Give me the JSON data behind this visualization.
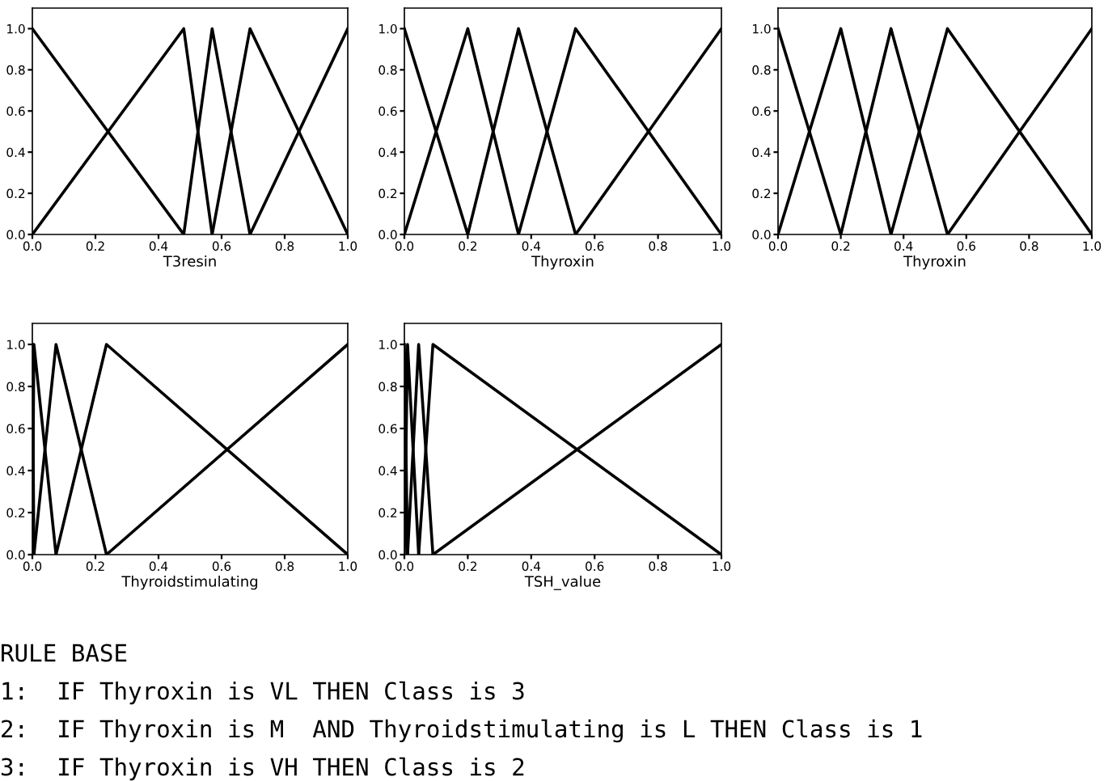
{
  "chart_data": [
    {
      "type": "line",
      "xlabel": "T3resin",
      "xlim": [
        0,
        1
      ],
      "ylim": [
        0,
        1.1
      ],
      "xticks": [
        {
          "value": 0,
          "label": "0.0"
        },
        {
          "value": 0.2,
          "label": "0.2"
        },
        {
          "value": 0.4,
          "label": "0.4"
        },
        {
          "value": 0.6,
          "label": "0.6"
        },
        {
          "value": 0.8,
          "label": "0.8"
        },
        {
          "value": 1,
          "label": "1.0"
        }
      ],
      "yticks": [
        {
          "value": 0,
          "label": "0.0"
        },
        {
          "value": 0.2,
          "label": "0.2"
        },
        {
          "value": 0.4,
          "label": "0.4"
        },
        {
          "value": 0.6,
          "label": "0.6"
        },
        {
          "value": 0.8,
          "label": "0.8"
        },
        {
          "value": 1,
          "label": "1.0"
        }
      ],
      "series": [
        {
          "color": "#000000",
          "x": [
            0,
            0.48
          ],
          "values": [
            1,
            0
          ]
        },
        {
          "color": "#000000",
          "x": [
            0,
            0.48,
            0.57
          ],
          "values": [
            0,
            1,
            0
          ]
        },
        {
          "color": "#000000",
          "x": [
            0.48,
            0.57,
            0.69
          ],
          "values": [
            0,
            1,
            0
          ]
        },
        {
          "color": "#000000",
          "x": [
            0.57,
            0.69,
            1
          ],
          "values": [
            0,
            1,
            0
          ]
        },
        {
          "color": "#000000",
          "x": [
            0.69,
            1
          ],
          "values": [
            0,
            1
          ]
        }
      ]
    },
    {
      "type": "line",
      "xlabel": "Thyroxin",
      "xlim": [
        0,
        1
      ],
      "ylim": [
        0,
        1.1
      ],
      "xticks": [
        {
          "value": 0,
          "label": "0.0"
        },
        {
          "value": 0.2,
          "label": "0.2"
        },
        {
          "value": 0.4,
          "label": "0.4"
        },
        {
          "value": 0.6,
          "label": "0.6"
        },
        {
          "value": 0.8,
          "label": "0.8"
        },
        {
          "value": 1,
          "label": "1.0"
        }
      ],
      "yticks": [
        {
          "value": 0,
          "label": "0.0"
        },
        {
          "value": 0.2,
          "label": "0.2"
        },
        {
          "value": 0.4,
          "label": "0.4"
        },
        {
          "value": 0.6,
          "label": "0.6"
        },
        {
          "value": 0.8,
          "label": "0.8"
        },
        {
          "value": 1,
          "label": "1.0"
        }
      ],
      "series": [
        {
          "color": "#000000",
          "x": [
            0,
            0.2
          ],
          "values": [
            1,
            0
          ]
        },
        {
          "color": "#000000",
          "x": [
            0,
            0.2,
            0.36
          ],
          "values": [
            0,
            1,
            0
          ]
        },
        {
          "color": "#000000",
          "x": [
            0.2,
            0.36,
            0.54
          ],
          "values": [
            0,
            1,
            0
          ]
        },
        {
          "color": "#000000",
          "x": [
            0.36,
            0.54,
            1
          ],
          "values": [
            0,
            1,
            0
          ]
        },
        {
          "color": "#000000",
          "x": [
            0.54,
            1
          ],
          "values": [
            0,
            1
          ]
        }
      ]
    },
    {
      "type": "line",
      "xlabel": "Thyroxin",
      "xlim": [
        0,
        1
      ],
      "ylim": [
        0,
        1.1
      ],
      "xticks": [
        {
          "value": 0,
          "label": "0.0"
        },
        {
          "value": 0.2,
          "label": "0.2"
        },
        {
          "value": 0.4,
          "label": "0.4"
        },
        {
          "value": 0.6,
          "label": "0.6"
        },
        {
          "value": 0.8,
          "label": "0.8"
        },
        {
          "value": 1,
          "label": "1.0"
        }
      ],
      "yticks": [
        {
          "value": 0,
          "label": "0.0"
        },
        {
          "value": 0.2,
          "label": "0.2"
        },
        {
          "value": 0.4,
          "label": "0.4"
        },
        {
          "value": 0.6,
          "label": "0.6"
        },
        {
          "value": 0.8,
          "label": "0.8"
        },
        {
          "value": 1,
          "label": "1.0"
        }
      ],
      "series": [
        {
          "color": "#000000",
          "x": [
            0,
            0.2
          ],
          "values": [
            1,
            0
          ]
        },
        {
          "color": "#000000",
          "x": [
            0,
            0.2,
            0.36
          ],
          "values": [
            0,
            1,
            0
          ]
        },
        {
          "color": "#000000",
          "x": [
            0.2,
            0.36,
            0.54
          ],
          "values": [
            0,
            1,
            0
          ]
        },
        {
          "color": "#000000",
          "x": [
            0.36,
            0.54,
            1
          ],
          "values": [
            0,
            1,
            0
          ]
        },
        {
          "color": "#000000",
          "x": [
            0.54,
            1
          ],
          "values": [
            0,
            1
          ]
        }
      ]
    },
    {
      "type": "line",
      "xlabel": "Thyroidstimulating",
      "xlim": [
        0,
        1
      ],
      "ylim": [
        0,
        1.1
      ],
      "xticks": [
        {
          "value": 0,
          "label": "0.0"
        },
        {
          "value": 0.2,
          "label": "0.2"
        },
        {
          "value": 0.4,
          "label": "0.4"
        },
        {
          "value": 0.6,
          "label": "0.6"
        },
        {
          "value": 0.8,
          "label": "0.8"
        },
        {
          "value": 1,
          "label": "1.0"
        }
      ],
      "yticks": [
        {
          "value": 0,
          "label": "0.0"
        },
        {
          "value": 0.2,
          "label": "0.2"
        },
        {
          "value": 0.4,
          "label": "0.4"
        },
        {
          "value": 0.6,
          "label": "0.6"
        },
        {
          "value": 0.8,
          "label": "0.8"
        },
        {
          "value": 1,
          "label": "1.0"
        }
      ],
      "series": [
        {
          "color": "#000000",
          "x": [
            0,
            0.005
          ],
          "values": [
            1,
            0
          ]
        },
        {
          "color": "#000000",
          "x": [
            0,
            0.005,
            0.075
          ],
          "values": [
            0,
            1,
            0
          ]
        },
        {
          "color": "#000000",
          "x": [
            0.005,
            0.075,
            0.235
          ],
          "values": [
            0,
            1,
            0
          ]
        },
        {
          "color": "#000000",
          "x": [
            0.075,
            0.235,
            1
          ],
          "values": [
            0,
            1,
            0
          ]
        },
        {
          "color": "#000000",
          "x": [
            0.235,
            1
          ],
          "values": [
            0,
            1
          ]
        }
      ]
    },
    {
      "type": "line",
      "xlabel": "TSH_value",
      "xlim": [
        0,
        1
      ],
      "ylim": [
        0,
        1.1
      ],
      "xticks": [
        {
          "value": 0,
          "label": "0.0"
        },
        {
          "value": 0.2,
          "label": "0.2"
        },
        {
          "value": 0.4,
          "label": "0.4"
        },
        {
          "value": 0.6,
          "label": "0.6"
        },
        {
          "value": 0.8,
          "label": "0.8"
        },
        {
          "value": 1,
          "label": "1.0"
        }
      ],
      "yticks": [
        {
          "value": 0,
          "label": "0.0"
        },
        {
          "value": 0.2,
          "label": "0.2"
        },
        {
          "value": 0.4,
          "label": "0.4"
        },
        {
          "value": 0.6,
          "label": "0.6"
        },
        {
          "value": 0.8,
          "label": "0.8"
        },
        {
          "value": 1,
          "label": "1.0"
        }
      ],
      "series": [
        {
          "color": "#000000",
          "x": [
            0,
            0.01
          ],
          "values": [
            1,
            0
          ]
        },
        {
          "color": "#000000",
          "x": [
            0,
            0.01,
            0.045
          ],
          "values": [
            0,
            1,
            0
          ]
        },
        {
          "color": "#000000",
          "x": [
            0.01,
            0.045,
            0.09
          ],
          "values": [
            0,
            1,
            0
          ]
        },
        {
          "color": "#000000",
          "x": [
            0.045,
            0.09,
            1
          ],
          "values": [
            0,
            1,
            0
          ]
        },
        {
          "color": "#000000",
          "x": [
            0.09,
            1
          ],
          "values": [
            0,
            1
          ]
        }
      ]
    },
    {
      "type": "other",
      "title": "RULE BASE",
      "annotations": [
        "1:  IF Thyroxin is VL THEN Class is 3",
        "2:  IF Thyroxin is M  AND Thyroidstimulating is L THEN Class is 1",
        "3:  IF Thyroxin is VH THEN Class is 2"
      ]
    }
  ]
}
